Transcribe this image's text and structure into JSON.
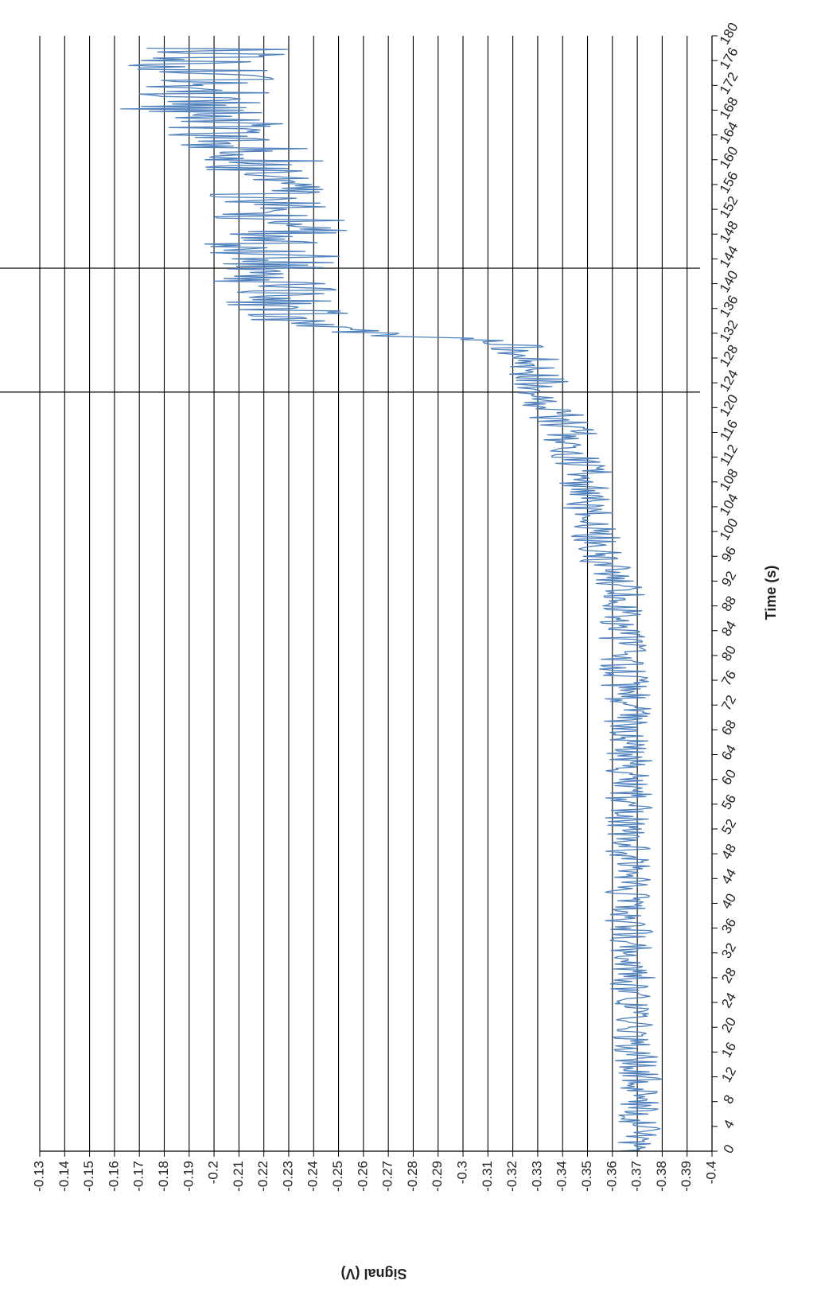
{
  "chart_data": {
    "type": "line",
    "orientation": "rotated-90",
    "xlabel": "Time (s)",
    "ylabel": "Signal (V)",
    "xlim": [
      0,
      180
    ],
    "ylim": [
      -0.4,
      -0.13
    ],
    "xticks": [
      "0",
      "4",
      "8",
      "12",
      "16",
      "20",
      "24",
      "28",
      "32",
      "36",
      "40",
      "44",
      "48",
      "52",
      "56",
      "60",
      "64",
      "68",
      "72",
      "76",
      "80",
      "84",
      "88",
      "92",
      "96",
      "100",
      "104",
      "108",
      "112",
      "116",
      "120",
      "124",
      "128",
      "132",
      "136",
      "140",
      "144",
      "148",
      "152",
      "156",
      "160",
      "164",
      "168",
      "172",
      "176",
      "180"
    ],
    "yticks": [
      "-0.13",
      "-0.14",
      "-0.15",
      "-0.16",
      "-0.17",
      "-0.18",
      "-0.19",
      "-0.2",
      "-0.21",
      "-0.22",
      "-0.23",
      "-0.24",
      "-0.25",
      "-0.26",
      "-0.27",
      "-0.28",
      "-0.29",
      "-0.3",
      "-0.31",
      "-0.32",
      "-0.33",
      "-0.34",
      "-0.35",
      "-0.36",
      "-0.37",
      "-0.38",
      "-0.39",
      "-0.4"
    ],
    "grid": "horizontal-only",
    "legend": "none",
    "markers": [
      {
        "x": 122.5,
        "type": "vertical-line"
      },
      {
        "x": 142.5,
        "type": "vertical-line"
      }
    ],
    "series": [
      {
        "color": "#4f81bd",
        "baseline": [
          [
            0,
            -0.371
          ],
          [
            10,
            -0.371
          ],
          [
            20,
            -0.369
          ],
          [
            30,
            -0.368
          ],
          [
            40,
            -0.366
          ],
          [
            50,
            -0.366
          ],
          [
            60,
            -0.367
          ],
          [
            70,
            -0.366
          ],
          [
            80,
            -0.364
          ],
          [
            90,
            -0.363
          ],
          [
            96,
            -0.356
          ],
          [
            100,
            -0.353
          ],
          [
            104,
            -0.35
          ],
          [
            108,
            -0.349
          ],
          [
            112,
            -0.347
          ],
          [
            116,
            -0.342
          ],
          [
            120,
            -0.337
          ],
          [
            124,
            -0.333
          ],
          [
            128,
            -0.327
          ],
          [
            130,
            -0.32
          ],
          [
            131,
            -0.3
          ],
          [
            132,
            -0.27
          ],
          [
            133,
            -0.25
          ],
          [
            134,
            -0.232
          ],
          [
            140,
            -0.225
          ],
          [
            144,
            -0.225
          ],
          [
            148,
            -0.224
          ],
          [
            152,
            -0.226
          ],
          [
            156,
            -0.22
          ],
          [
            160,
            -0.222
          ],
          [
            164,
            -0.208
          ],
          [
            168,
            -0.19
          ],
          [
            172,
            -0.195
          ],
          [
            176,
            -0.197
          ],
          [
            178,
            -0.2
          ]
        ],
        "noise_amplitude": [
          [
            0,
            0.009
          ],
          [
            96,
            0.01
          ],
          [
            120,
            0.013
          ],
          [
            130,
            0.012
          ],
          [
            132,
            0.022
          ],
          [
            150,
            0.03
          ],
          [
            160,
            0.026
          ],
          [
            178,
            0.032
          ]
        ],
        "sampling_interval": 0.2
      }
    ]
  }
}
